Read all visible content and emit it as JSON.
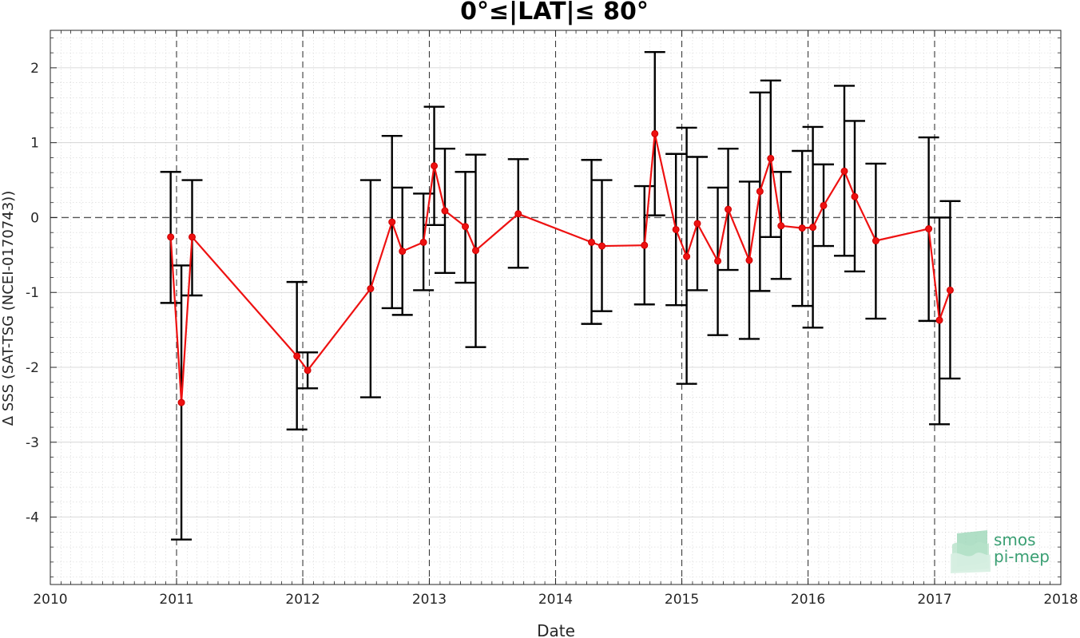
{
  "chart_data": {
    "type": "line",
    "title": "0°≤|LAT|≤ 80°",
    "xlabel": "Date",
    "ylabel": "Δ SSS (SAT-TSG (NCEI-0170743))",
    "xlim": [
      "2010-01-01",
      "2018-01-01"
    ],
    "ylim": [
      -4.9,
      2.5
    ],
    "x_ticks": [
      "2010",
      "2011",
      "2012",
      "2013",
      "2014",
      "2015",
      "2016",
      "2017",
      "2018"
    ],
    "y_ticks": [
      -4,
      -3,
      -2,
      -1,
      0,
      1,
      2
    ],
    "y_tick_labels": [
      "-4",
      "-3",
      "-2",
      "-1",
      "0",
      "1",
      "2"
    ],
    "grid": true,
    "reference_line_y": 0,
    "series": [
      {
        "color": "#ee1111",
        "errorbar_color": "#000000",
        "points": [
          {
            "x": "2010-12-15",
            "y": -0.26,
            "low": -1.14,
            "high": 0.61
          },
          {
            "x": "2011-01-15",
            "y": -2.47,
            "low": -4.3,
            "high": -0.64
          },
          {
            "x": "2011-02-15",
            "y": -0.26,
            "low": -1.04,
            "high": 0.5
          },
          {
            "x": "2011-12-15",
            "y": -1.85,
            "low": -2.83,
            "high": -0.86
          },
          {
            "x": "2012-01-15",
            "y": -2.04,
            "low": -2.28,
            "high": -1.8
          },
          {
            "x": "2012-07-15",
            "y": -0.95,
            "low": -2.4,
            "high": 0.5
          },
          {
            "x": "2012-09-15",
            "y": -0.06,
            "low": -1.21,
            "high": 1.09
          },
          {
            "x": "2012-10-15",
            "y": -0.45,
            "low": -1.3,
            "high": 0.4
          },
          {
            "x": "2012-12-15",
            "y": -0.33,
            "low": -0.97,
            "high": 0.32
          },
          {
            "x": "2013-01-15",
            "y": 0.69,
            "low": -0.1,
            "high": 1.48
          },
          {
            "x": "2013-02-15",
            "y": 0.09,
            "low": -0.74,
            "high": 0.92
          },
          {
            "x": "2013-04-15",
            "y": -0.12,
            "low": -0.87,
            "high": 0.61
          },
          {
            "x": "2013-05-15",
            "y": -0.44,
            "low": -1.73,
            "high": 0.84
          },
          {
            "x": "2013-09-15",
            "y": 0.05,
            "low": -0.67,
            "high": 0.78
          },
          {
            "x": "2014-04-15",
            "y": -0.33,
            "low": -1.42,
            "high": 0.77
          },
          {
            "x": "2014-05-15",
            "y": -0.38,
            "low": -1.25,
            "high": 0.5
          },
          {
            "x": "2014-09-15",
            "y": -0.37,
            "low": -1.16,
            "high": 0.42
          },
          {
            "x": "2014-10-15",
            "y": 1.12,
            "low": 0.03,
            "high": 2.21
          },
          {
            "x": "2014-12-15",
            "y": -0.16,
            "low": -1.17,
            "high": 0.85
          },
          {
            "x": "2015-01-15",
            "y": -0.52,
            "low": -2.22,
            "high": 1.2
          },
          {
            "x": "2015-02-15",
            "y": -0.08,
            "low": -0.97,
            "high": 0.81
          },
          {
            "x": "2015-04-15",
            "y": -0.58,
            "low": -1.57,
            "high": 0.4
          },
          {
            "x": "2015-05-15",
            "y": 0.11,
            "low": -0.7,
            "high": 0.92
          },
          {
            "x": "2015-07-15",
            "y": -0.57,
            "low": -1.62,
            "high": 0.48
          },
          {
            "x": "2015-08-15",
            "y": 0.35,
            "low": -0.98,
            "high": 1.67
          },
          {
            "x": "2015-09-15",
            "y": 0.79,
            "low": -0.26,
            "high": 1.83
          },
          {
            "x": "2015-10-15",
            "y": -0.11,
            "low": -0.82,
            "high": 0.61
          },
          {
            "x": "2015-12-15",
            "y": -0.14,
            "low": -1.18,
            "high": 0.89
          },
          {
            "x": "2016-01-15",
            "y": -0.13,
            "low": -1.47,
            "high": 1.21
          },
          {
            "x": "2016-02-15",
            "y": 0.16,
            "low": -0.38,
            "high": 0.71
          },
          {
            "x": "2016-04-15",
            "y": 0.62,
            "low": -0.51,
            "high": 1.76
          },
          {
            "x": "2016-05-15",
            "y": 0.28,
            "low": -0.72,
            "high": 1.29
          },
          {
            "x": "2016-07-15",
            "y": -0.31,
            "low": -1.35,
            "high": 0.72
          },
          {
            "x": "2016-12-15",
            "y": -0.15,
            "low": -1.38,
            "high": 1.07
          },
          {
            "x": "2017-01-15",
            "y": -1.37,
            "low": -2.76,
            "high": 0.0
          },
          {
            "x": "2017-02-15",
            "y": -0.97,
            "low": -2.15,
            "high": 0.22
          }
        ]
      }
    ]
  },
  "watermark": {
    "line1": "smos",
    "line2": "pi-mep",
    "color": "#3a9f73"
  }
}
